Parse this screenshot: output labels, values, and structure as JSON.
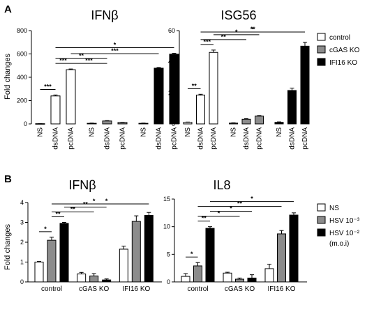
{
  "panel_labels": [
    "A",
    "B"
  ],
  "legends": {
    "A": [
      "control",
      "cGAS KO",
      "IFI16 KO"
    ],
    "B": [
      "NS",
      "HSV 10⁻³",
      "HSV 10⁻²"
    ],
    "B_note": "(m.o.i)"
  },
  "colors": {
    "white": "#ffffff",
    "gray": "#8c8c8c",
    "black": "#000000"
  },
  "chart_data": [
    {
      "type": "bar",
      "panel": "A",
      "title": "IFNβ",
      "ylabel": "Fold changes",
      "ylim": [
        0,
        800
      ],
      "yticks": [
        0,
        200,
        400,
        600,
        800
      ],
      "x_tick_labels": [
        "NS",
        "dsDNA",
        "pcDNA",
        "NS",
        "dsDNA",
        "pcDNA",
        "NS",
        "dsDNA",
        "pcDNA"
      ],
      "groups": [
        "control",
        "cGAS KO",
        "IFI16 KO"
      ],
      "values": [
        2,
        240,
        465,
        5,
        25,
        12,
        5,
        478,
        598
      ],
      "errors": [
        0,
        8,
        6,
        2,
        3,
        2,
        2,
        6,
        8
      ],
      "fill": [
        "white",
        "white",
        "white",
        "gray",
        "gray",
        "gray",
        "black",
        "black",
        "black"
      ],
      "significance": [
        {
          "from": 0,
          "to": 1,
          "label": "***"
        },
        {
          "from": 1,
          "to": 2,
          "label": "***"
        },
        {
          "from": 2,
          "to": 4,
          "label": "***"
        },
        {
          "from": 1,
          "to": 4,
          "label": "**"
        },
        {
          "from": 2,
          "to": 7,
          "label": "***"
        },
        {
          "from": 1,
          "to": 8,
          "label": "*"
        }
      ]
    },
    {
      "type": "bar",
      "panel": "A",
      "title": "ISG56",
      "ylabel": "",
      "ylim": [
        0,
        60
      ],
      "yticks": [
        0,
        20,
        40,
        60
      ],
      "x_tick_labels": [
        "NS",
        "dsDNA",
        "pcDNA",
        "NS",
        "dsDNA",
        "pcDNA",
        "NS",
        "dsDNA",
        "pcDNA"
      ],
      "groups": [
        "control",
        "cGAS KO",
        "IFI16 KO"
      ],
      "values": [
        1,
        18.5,
        46,
        0.5,
        3,
        5,
        1,
        21.5,
        50
      ],
      "errors": [
        0.2,
        0.6,
        1.5,
        0.2,
        0.4,
        0.4,
        0.3,
        1.5,
        2.5
      ],
      "fill": [
        "white",
        "white",
        "white",
        "gray",
        "gray",
        "gray",
        "black",
        "black",
        "black"
      ],
      "significance": [
        {
          "from": 0,
          "to": 1,
          "label": "**"
        },
        {
          "from": 1,
          "to": 2,
          "label": "***"
        },
        {
          "from": 1,
          "to": 4,
          "label": "**"
        },
        {
          "from": 2,
          "to": 5,
          "label": "*"
        },
        {
          "from": 2,
          "to": 7,
          "label": "**"
        },
        {
          "from": 1,
          "to": 8,
          "label": "*"
        }
      ]
    },
    {
      "type": "bar",
      "panel": "B",
      "title": "IFNβ",
      "ylabel": "Fold changes",
      "ylim": [
        0,
        4
      ],
      "yticks": [
        0,
        1,
        2,
        3,
        4
      ],
      "categories": [
        "control",
        "cGAS KO",
        "IFI16 KO"
      ],
      "series": [
        {
          "name": "NS",
          "fill": "white",
          "values": [
            1.0,
            0.4,
            1.65
          ],
          "errors": [
            0.03,
            0.08,
            0.15
          ]
        },
        {
          "name": "HSV 10⁻³",
          "fill": "gray",
          "values": [
            2.1,
            0.3,
            3.05
          ],
          "errors": [
            0.15,
            0.12,
            0.28
          ]
        },
        {
          "name": "HSV 10⁻²",
          "fill": "black",
          "values": [
            2.95,
            0.1,
            3.35
          ],
          "errors": [
            0.05,
            0.05,
            0.15
          ]
        }
      ],
      "significance": [
        {
          "from": [
            0,
            0
          ],
          "to": [
            0,
            1
          ],
          "label": "*"
        },
        {
          "from": [
            0,
            1
          ],
          "to": [
            0,
            2
          ],
          "label": "**"
        },
        {
          "from": [
            0,
            1
          ],
          "to": [
            1,
            1
          ],
          "label": "**"
        },
        {
          "from": [
            0,
            2
          ],
          "to": [
            1,
            2
          ],
          "label": "**"
        },
        {
          "from": [
            0,
            1
          ],
          "to": [
            2,
            1
          ],
          "label": "*"
        },
        {
          "from": [
            0,
            2
          ],
          "to": [
            2,
            2
          ],
          "label": "*"
        }
      ]
    },
    {
      "type": "bar",
      "panel": "B",
      "title": "IL8",
      "ylabel": "",
      "ylim": [
        0,
        15
      ],
      "yticks": [
        0,
        5,
        10,
        15
      ],
      "categories": [
        "control",
        "cGAS KO",
        "IFI16 KO"
      ],
      "series": [
        {
          "name": "NS",
          "fill": "white",
          "values": [
            1.0,
            1.6,
            2.4
          ],
          "errors": [
            0.5,
            0.15,
            0.8
          ]
        },
        {
          "name": "HSV 10⁻³",
          "fill": "gray",
          "values": [
            2.9,
            0.5,
            8.7
          ],
          "errors": [
            0.6,
            0.2,
            0.6
          ]
        },
        {
          "name": "HSV 10⁻²",
          "fill": "black",
          "values": [
            9.7,
            0.7,
            12.1
          ],
          "errors": [
            0.3,
            0.6,
            0.4
          ]
        }
      ],
      "significance": [
        {
          "from": [
            0,
            0
          ],
          "to": [
            0,
            1
          ],
          "label": "*"
        },
        {
          "from": [
            0,
            1
          ],
          "to": [
            0,
            2
          ],
          "label": "**"
        },
        {
          "from": [
            0,
            1
          ],
          "to": [
            1,
            1
          ],
          "label": "*"
        },
        {
          "from": [
            0,
            2
          ],
          "to": [
            1,
            2
          ],
          "label": "*"
        },
        {
          "from": [
            0,
            1
          ],
          "to": [
            2,
            1
          ],
          "label": "**"
        },
        {
          "from": [
            0,
            2
          ],
          "to": [
            2,
            2
          ],
          "label": "*"
        }
      ]
    }
  ]
}
